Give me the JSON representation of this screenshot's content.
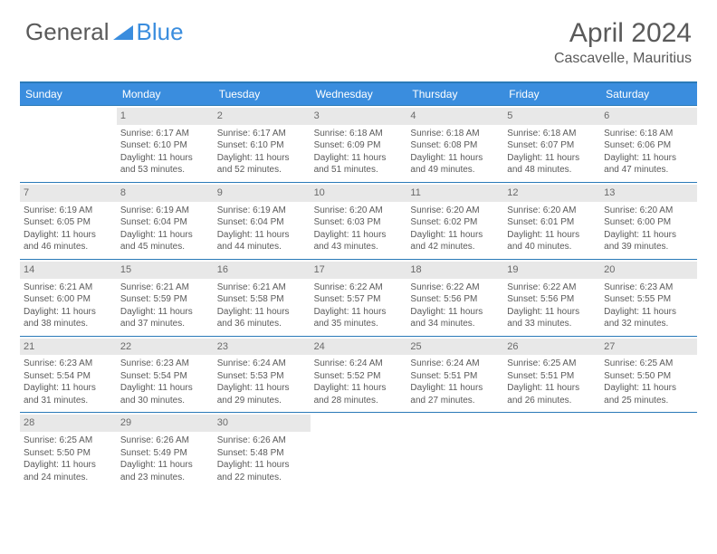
{
  "logo": {
    "text1": "General",
    "text2": "Blue"
  },
  "title": "April 2024",
  "location": "Cascavelle, Mauritius",
  "weekdays": [
    "Sunday",
    "Monday",
    "Tuesday",
    "Wednesday",
    "Thursday",
    "Friday",
    "Saturday"
  ],
  "colors": {
    "header_bg": "#3a8dde",
    "border": "#2a7ab8",
    "daynum_bg": "#e8e8e8",
    "text": "#5a5a5a"
  },
  "weeks": [
    [
      {
        "num": "",
        "lines": []
      },
      {
        "num": "1",
        "lines": [
          "Sunrise: 6:17 AM",
          "Sunset: 6:10 PM",
          "Daylight: 11 hours and 53 minutes."
        ]
      },
      {
        "num": "2",
        "lines": [
          "Sunrise: 6:17 AM",
          "Sunset: 6:10 PM",
          "Daylight: 11 hours and 52 minutes."
        ]
      },
      {
        "num": "3",
        "lines": [
          "Sunrise: 6:18 AM",
          "Sunset: 6:09 PM",
          "Daylight: 11 hours and 51 minutes."
        ]
      },
      {
        "num": "4",
        "lines": [
          "Sunrise: 6:18 AM",
          "Sunset: 6:08 PM",
          "Daylight: 11 hours and 49 minutes."
        ]
      },
      {
        "num": "5",
        "lines": [
          "Sunrise: 6:18 AM",
          "Sunset: 6:07 PM",
          "Daylight: 11 hours and 48 minutes."
        ]
      },
      {
        "num": "6",
        "lines": [
          "Sunrise: 6:18 AM",
          "Sunset: 6:06 PM",
          "Daylight: 11 hours and 47 minutes."
        ]
      }
    ],
    [
      {
        "num": "7",
        "lines": [
          "Sunrise: 6:19 AM",
          "Sunset: 6:05 PM",
          "Daylight: 11 hours and 46 minutes."
        ]
      },
      {
        "num": "8",
        "lines": [
          "Sunrise: 6:19 AM",
          "Sunset: 6:04 PM",
          "Daylight: 11 hours and 45 minutes."
        ]
      },
      {
        "num": "9",
        "lines": [
          "Sunrise: 6:19 AM",
          "Sunset: 6:04 PM",
          "Daylight: 11 hours and 44 minutes."
        ]
      },
      {
        "num": "10",
        "lines": [
          "Sunrise: 6:20 AM",
          "Sunset: 6:03 PM",
          "Daylight: 11 hours and 43 minutes."
        ]
      },
      {
        "num": "11",
        "lines": [
          "Sunrise: 6:20 AM",
          "Sunset: 6:02 PM",
          "Daylight: 11 hours and 42 minutes."
        ]
      },
      {
        "num": "12",
        "lines": [
          "Sunrise: 6:20 AM",
          "Sunset: 6:01 PM",
          "Daylight: 11 hours and 40 minutes."
        ]
      },
      {
        "num": "13",
        "lines": [
          "Sunrise: 6:20 AM",
          "Sunset: 6:00 PM",
          "Daylight: 11 hours and 39 minutes."
        ]
      }
    ],
    [
      {
        "num": "14",
        "lines": [
          "Sunrise: 6:21 AM",
          "Sunset: 6:00 PM",
          "Daylight: 11 hours and 38 minutes."
        ]
      },
      {
        "num": "15",
        "lines": [
          "Sunrise: 6:21 AM",
          "Sunset: 5:59 PM",
          "Daylight: 11 hours and 37 minutes."
        ]
      },
      {
        "num": "16",
        "lines": [
          "Sunrise: 6:21 AM",
          "Sunset: 5:58 PM",
          "Daylight: 11 hours and 36 minutes."
        ]
      },
      {
        "num": "17",
        "lines": [
          "Sunrise: 6:22 AM",
          "Sunset: 5:57 PM",
          "Daylight: 11 hours and 35 minutes."
        ]
      },
      {
        "num": "18",
        "lines": [
          "Sunrise: 6:22 AM",
          "Sunset: 5:56 PM",
          "Daylight: 11 hours and 34 minutes."
        ]
      },
      {
        "num": "19",
        "lines": [
          "Sunrise: 6:22 AM",
          "Sunset: 5:56 PM",
          "Daylight: 11 hours and 33 minutes."
        ]
      },
      {
        "num": "20",
        "lines": [
          "Sunrise: 6:23 AM",
          "Sunset: 5:55 PM",
          "Daylight: 11 hours and 32 minutes."
        ]
      }
    ],
    [
      {
        "num": "21",
        "lines": [
          "Sunrise: 6:23 AM",
          "Sunset: 5:54 PM",
          "Daylight: 11 hours and 31 minutes."
        ]
      },
      {
        "num": "22",
        "lines": [
          "Sunrise: 6:23 AM",
          "Sunset: 5:54 PM",
          "Daylight: 11 hours and 30 minutes."
        ]
      },
      {
        "num": "23",
        "lines": [
          "Sunrise: 6:24 AM",
          "Sunset: 5:53 PM",
          "Daylight: 11 hours and 29 minutes."
        ]
      },
      {
        "num": "24",
        "lines": [
          "Sunrise: 6:24 AM",
          "Sunset: 5:52 PM",
          "Daylight: 11 hours and 28 minutes."
        ]
      },
      {
        "num": "25",
        "lines": [
          "Sunrise: 6:24 AM",
          "Sunset: 5:51 PM",
          "Daylight: 11 hours and 27 minutes."
        ]
      },
      {
        "num": "26",
        "lines": [
          "Sunrise: 6:25 AM",
          "Sunset: 5:51 PM",
          "Daylight: 11 hours and 26 minutes."
        ]
      },
      {
        "num": "27",
        "lines": [
          "Sunrise: 6:25 AM",
          "Sunset: 5:50 PM",
          "Daylight: 11 hours and 25 minutes."
        ]
      }
    ],
    [
      {
        "num": "28",
        "lines": [
          "Sunrise: 6:25 AM",
          "Sunset: 5:50 PM",
          "Daylight: 11 hours and 24 minutes."
        ]
      },
      {
        "num": "29",
        "lines": [
          "Sunrise: 6:26 AM",
          "Sunset: 5:49 PM",
          "Daylight: 11 hours and 23 minutes."
        ]
      },
      {
        "num": "30",
        "lines": [
          "Sunrise: 6:26 AM",
          "Sunset: 5:48 PM",
          "Daylight: 11 hours and 22 minutes."
        ]
      },
      {
        "num": "",
        "lines": []
      },
      {
        "num": "",
        "lines": []
      },
      {
        "num": "",
        "lines": []
      },
      {
        "num": "",
        "lines": []
      }
    ]
  ]
}
